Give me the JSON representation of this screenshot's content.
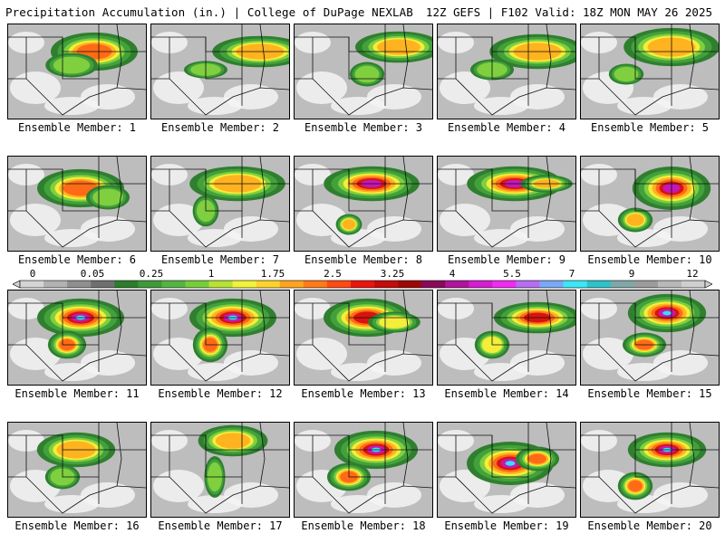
{
  "header": {
    "title": "Precipitation Accumulation (in.) | College of DuPage NEXLAB",
    "run_info": "12Z GEFS | F102 Valid: 18Z MON MAY 26 2025"
  },
  "colorbar": {
    "labels": [
      "0",
      "0.05",
      "0.25",
      "1",
      "1.75",
      "2.5",
      "3.25",
      "4",
      "5.5",
      "7",
      "9",
      "12"
    ],
    "colors": [
      "#d4d4d4",
      "#b2b2b2",
      "#8f8f8f",
      "#6f6f6f",
      "#2e7d2e",
      "#3f9a3a",
      "#55b345",
      "#78cc3c",
      "#b6e234",
      "#f2f23a",
      "#ffd22a",
      "#ffa41e",
      "#ff7a19",
      "#ff4a14",
      "#e8160f",
      "#c40c0c",
      "#9e0808",
      "#880a5a",
      "#b0149a",
      "#d41ed0",
      "#f02cf0",
      "#b56ef0",
      "#7aa8f5",
      "#3ce6f5",
      "#2ec2c8",
      "#7fa7a7",
      "#9c9c9c",
      "#b8b8b8",
      "#cfcfcf"
    ]
  },
  "members": [
    {
      "label": "Ensemble Member: 1"
    },
    {
      "label": "Ensemble Member: 2"
    },
    {
      "label": "Ensemble Member: 3"
    },
    {
      "label": "Ensemble Member: 4"
    },
    {
      "label": "Ensemble Member: 5"
    },
    {
      "label": "Ensemble Member: 6"
    },
    {
      "label": "Ensemble Member: 7"
    },
    {
      "label": "Ensemble Member: 8"
    },
    {
      "label": "Ensemble Member: 9"
    },
    {
      "label": "Ensemble Member: 10"
    },
    {
      "label": "Ensemble Member: 11"
    },
    {
      "label": "Ensemble Member: 12"
    },
    {
      "label": "Ensemble Member: 13"
    },
    {
      "label": "Ensemble Member: 14"
    },
    {
      "label": "Ensemble Member: 15"
    },
    {
      "label": "Ensemble Member: 16"
    },
    {
      "label": "Ensemble Member: 17"
    },
    {
      "label": "Ensemble Member: 18"
    },
    {
      "label": "Ensemble Member: 19"
    },
    {
      "label": "Ensemble Member: 20"
    }
  ]
}
